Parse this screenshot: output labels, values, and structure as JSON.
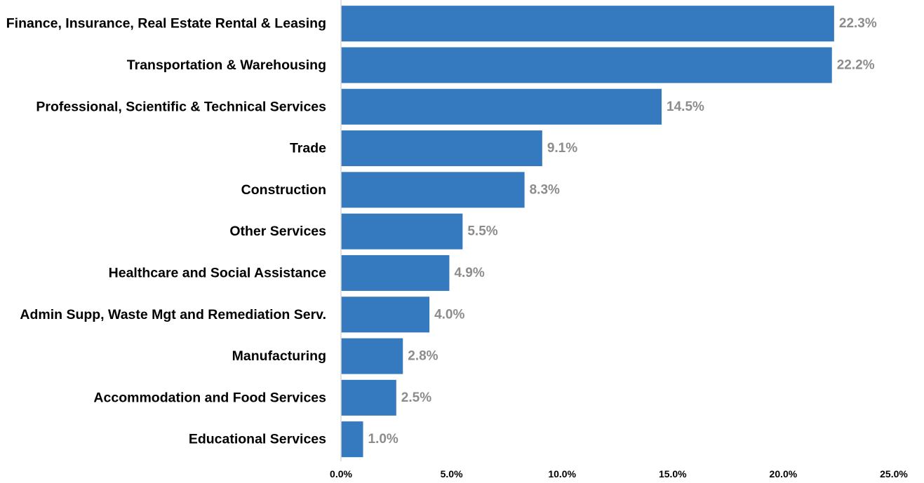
{
  "chart_data": {
    "type": "bar",
    "orientation": "horizontal",
    "categories": [
      "Finance, Insurance, Real Estate Rental & Leasing",
      "Transportation & Warehousing",
      "Professional, Scientific & Technical Services",
      "Trade",
      "Construction",
      "Other Services",
      "Healthcare and Social Assistance",
      "Admin Supp, Waste Mgt and Remediation Serv.",
      "Manufacturing",
      "Accommodation and Food Services",
      "Educational Services"
    ],
    "values": [
      22.3,
      22.2,
      14.5,
      9.1,
      8.3,
      5.5,
      4.9,
      4.0,
      2.8,
      2.5,
      1.0
    ],
    "value_labels": [
      "22.3%",
      "22.2%",
      "14.5%",
      "9.1%",
      "8.3%",
      "5.5%",
      "4.9%",
      "4.0%",
      "2.8%",
      "2.5%",
      "1.0%"
    ],
    "x_ticks": [
      0,
      5,
      10,
      15,
      20,
      25
    ],
    "x_tick_labels": [
      "0.0%",
      "5.0%",
      "10.0%",
      "15.0%",
      "20.0%",
      "25.0%"
    ],
    "xlim": [
      0,
      25
    ],
    "title": "",
    "xlabel": "",
    "ylabel": "",
    "grid": false,
    "legend": "none",
    "colors": {
      "bar": "#3579BE",
      "value_label": "#8C8C8C",
      "axis": "#D9D9D9"
    }
  }
}
